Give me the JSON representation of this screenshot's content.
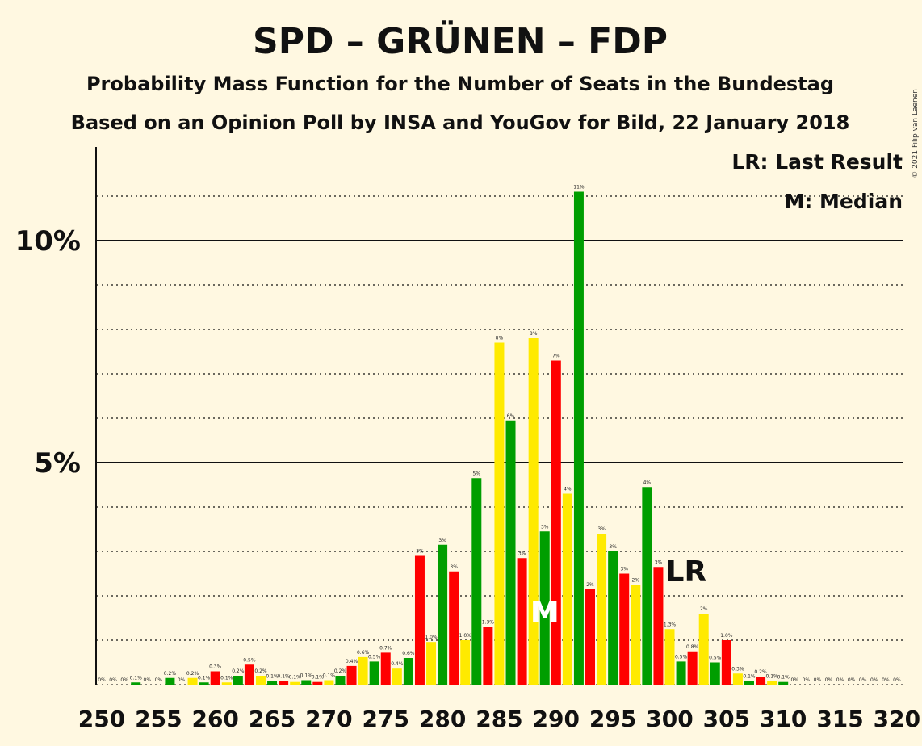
{
  "header": {
    "title": "SPD – GRÜNEN – FDP",
    "subtitle": "Probability Mass Function for the Number of Seats in the Bundestag",
    "subtitle2": "Based on an Opinion Poll by INSA and YouGov for Bild, 22 January 2018",
    "copyright": "© 2021 Filip van Laenen"
  },
  "legend": {
    "last_result": "LR: Last Result",
    "median": "M: Median"
  },
  "markers": {
    "last_result_label": "LR",
    "last_result_seat": 300,
    "median_label": "M",
    "median_seat": 290
  },
  "colors": {
    "red": "#ff0000",
    "green": "#009e00",
    "yellow": "#ffea00",
    "background": "#fff8e1"
  },
  "chart_data": {
    "type": "bar",
    "xlabel": "",
    "ylabel": "",
    "ylim": [
      0,
      12
    ],
    "y_ticks": [
      {
        "value": 5,
        "label": "5%"
      },
      {
        "value": 10,
        "label": "10%"
      }
    ],
    "x_ticks": [
      "250",
      "255",
      "260",
      "265",
      "270",
      "275",
      "280",
      "285",
      "290",
      "295",
      "300",
      "305",
      "310",
      "315",
      "320"
    ],
    "x_tick_values": [
      250,
      255,
      260,
      265,
      270,
      275,
      280,
      285,
      290,
      295,
      300,
      305,
      310,
      315,
      320
    ],
    "bars": [
      {
        "seat": 250,
        "value": 0.0,
        "label": "0%"
      },
      {
        "seat": 251,
        "value": 0.0,
        "label": "0%"
      },
      {
        "seat": 252,
        "value": 0.0,
        "label": "0%"
      },
      {
        "seat": 253,
        "value": 0.05,
        "label": "0.1%"
      },
      {
        "seat": 254,
        "value": 0.0,
        "label": "0%"
      },
      {
        "seat": 255,
        "value": 0.0,
        "label": "0%"
      },
      {
        "seat": 256,
        "value": 0.15,
        "label": "0.2%"
      },
      {
        "seat": 257,
        "value": 0.0,
        "label": "0%"
      },
      {
        "seat": 258,
        "value": 0.15,
        "label": "0.2%"
      },
      {
        "seat": 259,
        "value": 0.05,
        "label": "0.1%"
      },
      {
        "seat": 260,
        "value": 0.3,
        "label": "0.3%"
      },
      {
        "seat": 261,
        "value": 0.05,
        "label": "0.1%"
      },
      {
        "seat": 262,
        "value": 0.2,
        "label": "0.2%"
      },
      {
        "seat": 263,
        "value": 0.45,
        "label": "0.5%"
      },
      {
        "seat": 264,
        "value": 0.2,
        "label": "0.2%"
      },
      {
        "seat": 265,
        "value": 0.08,
        "label": "0.1%"
      },
      {
        "seat": 266,
        "value": 0.08,
        "label": "0.1%"
      },
      {
        "seat": 267,
        "value": 0.06,
        "label": "0.1%"
      },
      {
        "seat": 268,
        "value": 0.1,
        "label": "0.1%"
      },
      {
        "seat": 269,
        "value": 0.06,
        "label": "0.1%"
      },
      {
        "seat": 270,
        "value": 0.1,
        "label": "0.1%"
      },
      {
        "seat": 271,
        "value": 0.2,
        "label": "0.2%"
      },
      {
        "seat": 272,
        "value": 0.42,
        "label": "0.4%"
      },
      {
        "seat": 273,
        "value": 0.62,
        "label": "0.6%"
      },
      {
        "seat": 274,
        "value": 0.52,
        "label": "0.5%"
      },
      {
        "seat": 275,
        "value": 0.72,
        "label": "0.7%"
      },
      {
        "seat": 276,
        "value": 0.36,
        "label": "0.4%"
      },
      {
        "seat": 277,
        "value": 0.6,
        "label": "0.6%"
      },
      {
        "seat": 278,
        "value": 2.9,
        "label": "3%"
      },
      {
        "seat": 279,
        "value": 0.96,
        "label": "1.0%"
      },
      {
        "seat": 280,
        "value": 3.15,
        "label": "3%"
      },
      {
        "seat": 281,
        "value": 2.55,
        "label": "3%"
      },
      {
        "seat": 282,
        "value": 1.0,
        "label": "1.0%"
      },
      {
        "seat": 283,
        "value": 4.65,
        "label": "5%"
      },
      {
        "seat": 284,
        "value": 1.3,
        "label": "1.3%"
      },
      {
        "seat": 285,
        "value": 7.7,
        "label": "8%"
      },
      {
        "seat": 286,
        "value": 5.95,
        "label": "6%"
      },
      {
        "seat": 287,
        "value": 2.85,
        "label": "3%"
      },
      {
        "seat": 288,
        "value": 7.8,
        "label": "8%"
      },
      {
        "seat": 289,
        "value": 3.45,
        "label": "3%"
      },
      {
        "seat": 290,
        "value": 7.3,
        "label": "7%"
      },
      {
        "seat": 291,
        "value": 4.3,
        "label": "4%"
      },
      {
        "seat": 292,
        "value": 11.1,
        "label": "11%"
      },
      {
        "seat": 293,
        "value": 2.15,
        "label": "2%"
      },
      {
        "seat": 294,
        "value": 3.4,
        "label": "3%"
      },
      {
        "seat": 295,
        "value": 3.0,
        "label": "3%"
      },
      {
        "seat": 296,
        "value": 2.5,
        "label": "3%"
      },
      {
        "seat": 297,
        "value": 2.25,
        "label": "2%"
      },
      {
        "seat": 298,
        "value": 4.45,
        "label": "4%"
      },
      {
        "seat": 299,
        "value": 2.65,
        "label": "3%"
      },
      {
        "seat": 300,
        "value": 1.25,
        "label": "1.3%"
      },
      {
        "seat": 301,
        "value": 0.52,
        "label": "0.5%"
      },
      {
        "seat": 302,
        "value": 0.75,
        "label": "0.8%"
      },
      {
        "seat": 303,
        "value": 1.6,
        "label": "2%"
      },
      {
        "seat": 304,
        "value": 0.5,
        "label": "0.5%"
      },
      {
        "seat": 305,
        "value": 1.0,
        "label": "1.0%"
      },
      {
        "seat": 306,
        "value": 0.25,
        "label": "0.3%"
      },
      {
        "seat": 307,
        "value": 0.08,
        "label": "0.1%"
      },
      {
        "seat": 308,
        "value": 0.18,
        "label": "0.2%"
      },
      {
        "seat": 309,
        "value": 0.08,
        "label": "0.1%"
      },
      {
        "seat": 310,
        "value": 0.06,
        "label": "0.1%"
      },
      {
        "seat": 311,
        "value": 0.0,
        "label": "0%"
      },
      {
        "seat": 312,
        "value": 0.0,
        "label": "0%"
      },
      {
        "seat": 313,
        "value": 0.0,
        "label": "0%"
      },
      {
        "seat": 314,
        "value": 0.0,
        "label": "0%"
      },
      {
        "seat": 315,
        "value": 0.0,
        "label": "0%"
      },
      {
        "seat": 316,
        "value": 0.0,
        "label": "0%"
      },
      {
        "seat": 317,
        "value": 0.0,
        "label": "0%"
      },
      {
        "seat": 318,
        "value": 0.0,
        "label": "0%"
      },
      {
        "seat": 319,
        "value": 0.0,
        "label": "0%"
      },
      {
        "seat": 320,
        "value": 0.0,
        "label": "0%"
      }
    ]
  }
}
